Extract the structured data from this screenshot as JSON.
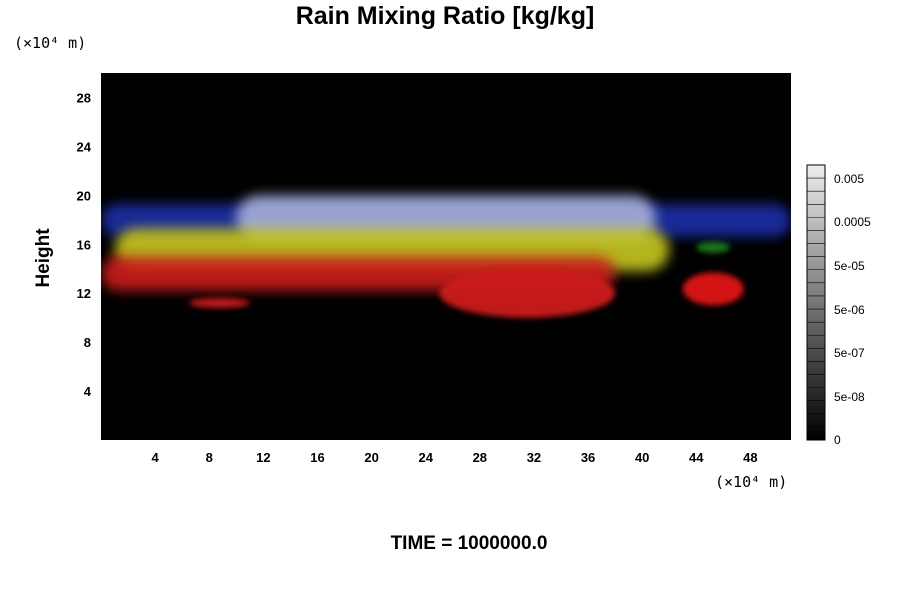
{
  "chart_data": {
    "type": "heatmap",
    "title": "Rain Mixing Ratio [kg/kg]",
    "ylabel": "Height",
    "xlabel": "",
    "x_unit": "(×10⁴ m)",
    "y_unit": "(×10⁴ m)",
    "xlim": [
      0,
      51
    ],
    "ylim": [
      0,
      30
    ],
    "x_ticks": [
      "4",
      "8",
      "12",
      "16",
      "20",
      "24",
      "28",
      "32",
      "36",
      "40",
      "44",
      "48"
    ],
    "y_ticks": [
      "4",
      "8",
      "12",
      "16",
      "20",
      "24",
      "28"
    ],
    "x_tick_values": [
      4,
      8,
      12,
      16,
      20,
      24,
      28,
      32,
      36,
      40,
      44,
      48
    ],
    "y_tick_values": [
      4,
      8,
      12,
      16,
      20,
      24,
      28
    ],
    "background_color": "#000000",
    "colorbar": {
      "scale": "log",
      "labels": [
        "0.005",
        "0.0005",
        "5e-05",
        "5e-06",
        "5e-07",
        "5e-08",
        "0"
      ],
      "label_values": [
        0.005,
        0.0005,
        5e-05,
        5e-06,
        5e-07,
        5e-08,
        0
      ],
      "min_color": "#000000",
      "max_color": "#eeeeee"
    },
    "features": [
      {
        "color": "#1f2fa8",
        "shape": "band",
        "x_range": [
          0,
          51
        ],
        "y_range": [
          16.6,
          19.3
        ]
      },
      {
        "color": "#a8b0d8",
        "shape": "band",
        "x_range": [
          10,
          41
        ],
        "y_range": [
          16.2,
          20.0
        ]
      },
      {
        "color": "#c8c820",
        "shape": "band",
        "x_range": [
          1,
          42
        ],
        "y_range": [
          13.8,
          17.3
        ]
      },
      {
        "color": "#cc1a1a",
        "shape": "band",
        "x_range": [
          0,
          38
        ],
        "y_range": [
          12.2,
          15.0
        ]
      },
      {
        "color": "#cc1a1a",
        "shape": "blob",
        "x_range": [
          25,
          38
        ],
        "y_range": [
          10.0,
          14.0
        ]
      },
      {
        "color": "#cc1a1a",
        "shape": "blob",
        "x_range": [
          6.5,
          11
        ],
        "y_range": [
          10.8,
          11.6
        ]
      },
      {
        "color": "#e01818",
        "shape": "blob",
        "x_range": [
          43,
          47.5
        ],
        "y_range": [
          11.0,
          13.7
        ]
      },
      {
        "color": "#1a7a1a",
        "shape": "blob",
        "x_range": [
          44,
          46.5
        ],
        "y_range": [
          15.3,
          16.2
        ]
      }
    ]
  },
  "footer_text": "TIME = 1000000.0"
}
